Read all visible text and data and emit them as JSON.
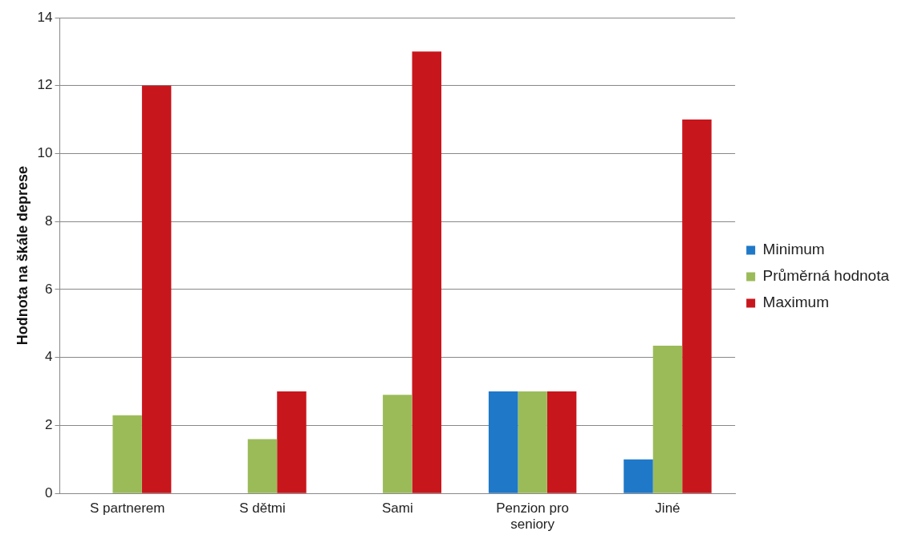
{
  "chart_data": {
    "type": "bar",
    "ylabel": "Hodnota na škále deprese",
    "categories": [
      "S partnerem",
      "S dětmi",
      "Sami",
      "Penzion pro seniory",
      "Jiné"
    ],
    "series": [
      {
        "name": "Minimum",
        "color": "#1f78c8",
        "values": [
          0,
          0,
          0,
          3,
          1
        ]
      },
      {
        "name": "Průměrná hodnota",
        "color": "#9bbb59",
        "values": [
          2.3,
          1.6,
          2.9,
          3,
          4.35
        ]
      },
      {
        "name": "Maximum",
        "color": "#c8161d",
        "values": [
          12,
          3,
          13,
          3,
          11
        ]
      }
    ],
    "ylim": [
      0,
      14
    ],
    "yticks": [
      0,
      2,
      4,
      6,
      8,
      10,
      12,
      14
    ],
    "grid": "y",
    "legend": "right"
  }
}
